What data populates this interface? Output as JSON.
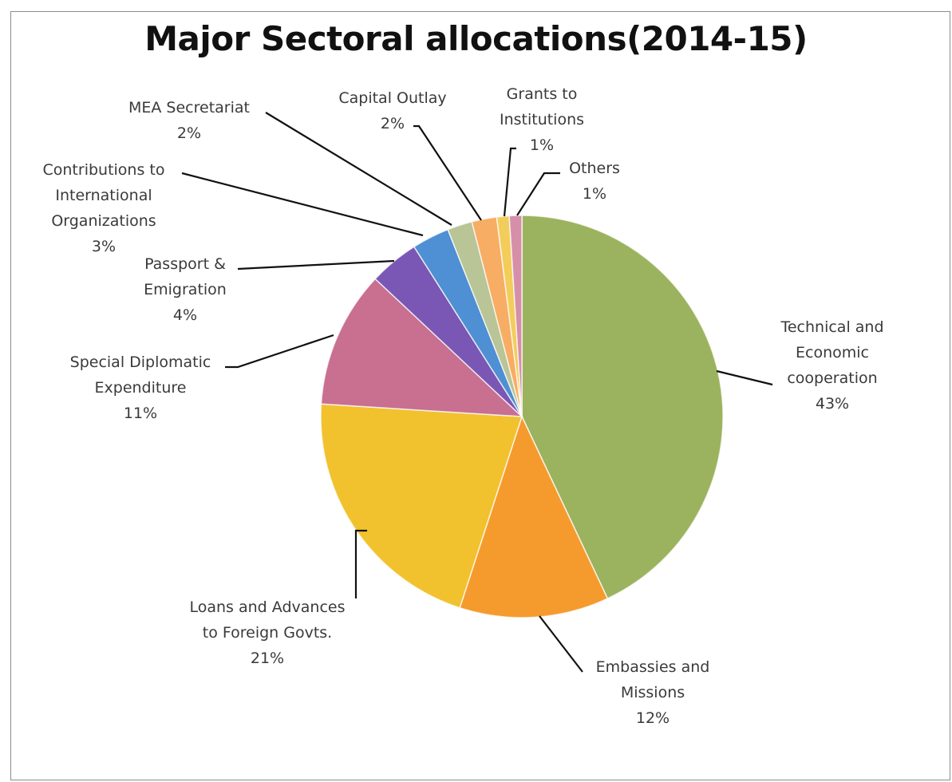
{
  "chart_data": {
    "type": "pie",
    "title": "Major Sectoral allocations(2014-15)",
    "legend": "none",
    "slices": [
      {
        "label_lines": [
          "Technical and",
          "Economic",
          "cooperation"
        ],
        "percent_label": "43%",
        "value": 43,
        "color": "#9bb35e"
      },
      {
        "label_lines": [
          "Embassies and",
          "Missions"
        ],
        "percent_label": "12%",
        "value": 12,
        "color": "#f59b2e"
      },
      {
        "label_lines": [
          "Loans and Advances",
          "to Foreign Govts."
        ],
        "percent_label": "21%",
        "value": 21,
        "color": "#f2c12e"
      },
      {
        "label_lines": [
          "Special Diplomatic",
          "Expenditure"
        ],
        "percent_label": "11%",
        "value": 11,
        "color": "#c96f8f"
      },
      {
        "label_lines": [
          "Passport &",
          "Emigration"
        ],
        "percent_label": "4%",
        "value": 4,
        "color": "#7a57b4"
      },
      {
        "label_lines": [
          "Contributions to",
          "International",
          "Organizations"
        ],
        "percent_label": "3%",
        "value": 3,
        "color": "#4f8fd3"
      },
      {
        "label_lines": [
          "MEA Secretariat"
        ],
        "percent_label": "2%",
        "value": 2,
        "color": "#b9c497"
      },
      {
        "label_lines": [
          "Capital Outlay"
        ],
        "percent_label": "2%",
        "value": 2,
        "color": "#f7ad63"
      },
      {
        "label_lines": [
          "Grants to",
          "Institutions"
        ],
        "percent_label": "1%",
        "value": 1,
        "color": "#f3cd5c"
      },
      {
        "label_lines": [
          "Others"
        ],
        "percent_label": "1%",
        "value": 1,
        "color": "#d68fa8"
      }
    ]
  }
}
